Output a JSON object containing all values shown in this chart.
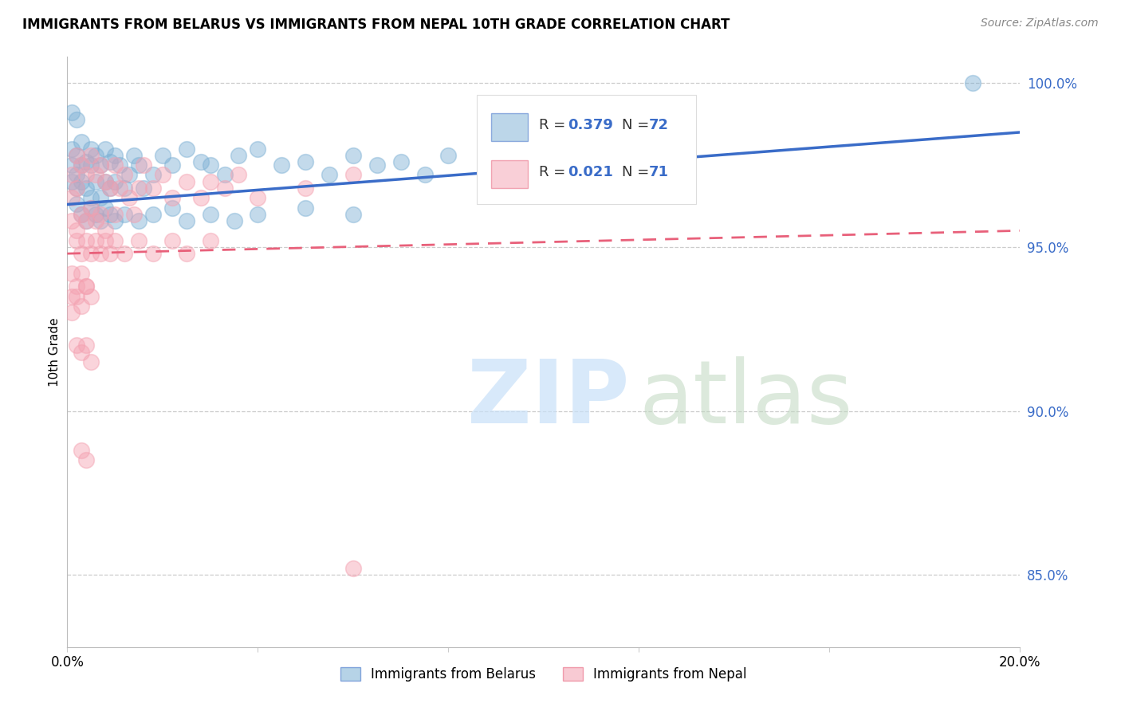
{
  "title": "IMMIGRANTS FROM BELARUS VS IMMIGRANTS FROM NEPAL 10TH GRADE CORRELATION CHART",
  "source": "Source: ZipAtlas.com",
  "ylabel": "10th Grade",
  "xlim": [
    0.0,
    0.2
  ],
  "ylim": [
    0.828,
    1.008
  ],
  "yticks": [
    0.85,
    0.9,
    0.95,
    1.0
  ],
  "ytick_labels": [
    "85.0%",
    "90.0%",
    "95.0%",
    "100.0%"
  ],
  "legend_label_belarus": "Immigrants from Belarus",
  "legend_label_nepal": "Immigrants from Nepal",
  "color_belarus": "#7BAFD4",
  "color_nepal": "#F4A0B0",
  "color_line_belarus": "#3A6CC8",
  "color_line_nepal": "#E8607A",
  "belarus_x": [
    0.001,
    0.001,
    0.001,
    0.002,
    0.002,
    0.002,
    0.003,
    0.003,
    0.003,
    0.004,
    0.004,
    0.005,
    0.005,
    0.005,
    0.006,
    0.006,
    0.007,
    0.007,
    0.008,
    0.008,
    0.009,
    0.009,
    0.01,
    0.01,
    0.011,
    0.012,
    0.013,
    0.014,
    0.015,
    0.016,
    0.018,
    0.02,
    0.022,
    0.025,
    0.028,
    0.03,
    0.033,
    0.036,
    0.04,
    0.045,
    0.05,
    0.055,
    0.06,
    0.065,
    0.07,
    0.075,
    0.08,
    0.09,
    0.1,
    0.11,
    0.002,
    0.003,
    0.004,
    0.005,
    0.006,
    0.007,
    0.008,
    0.009,
    0.01,
    0.012,
    0.015,
    0.018,
    0.022,
    0.025,
    0.03,
    0.035,
    0.04,
    0.05,
    0.06,
    0.19,
    0.001,
    0.002
  ],
  "belarus_y": [
    0.98,
    0.975,
    0.97,
    0.978,
    0.972,
    0.968,
    0.982,
    0.975,
    0.97,
    0.976,
    0.968,
    0.98,
    0.975,
    0.965,
    0.978,
    0.97,
    0.975,
    0.965,
    0.98,
    0.97,
    0.976,
    0.968,
    0.978,
    0.97,
    0.975,
    0.968,
    0.972,
    0.978,
    0.975,
    0.968,
    0.972,
    0.978,
    0.975,
    0.98,
    0.976,
    0.975,
    0.972,
    0.978,
    0.98,
    0.975,
    0.976,
    0.972,
    0.978,
    0.975,
    0.976,
    0.972,
    0.978,
    0.98,
    0.978,
    0.982,
    0.963,
    0.96,
    0.958,
    0.962,
    0.96,
    0.958,
    0.962,
    0.96,
    0.958,
    0.96,
    0.958,
    0.96,
    0.962,
    0.958,
    0.96,
    0.958,
    0.96,
    0.962,
    0.96,
    1.0,
    0.991,
    0.989
  ],
  "nepal_x": [
    0.001,
    0.001,
    0.001,
    0.002,
    0.002,
    0.002,
    0.003,
    0.003,
    0.004,
    0.004,
    0.005,
    0.005,
    0.006,
    0.006,
    0.007,
    0.007,
    0.008,
    0.008,
    0.009,
    0.01,
    0.01,
    0.011,
    0.012,
    0.013,
    0.014,
    0.015,
    0.016,
    0.018,
    0.02,
    0.022,
    0.025,
    0.028,
    0.03,
    0.033,
    0.036,
    0.04,
    0.05,
    0.06,
    0.002,
    0.003,
    0.004,
    0.005,
    0.006,
    0.007,
    0.008,
    0.009,
    0.01,
    0.012,
    0.015,
    0.018,
    0.022,
    0.025,
    0.03,
    0.001,
    0.002,
    0.003,
    0.004,
    0.001,
    0.001,
    0.002,
    0.003,
    0.004,
    0.005,
    0.002,
    0.003,
    0.004,
    0.005,
    0.003,
    0.004,
    0.06
  ],
  "nepal_y": [
    0.972,
    0.965,
    0.958,
    0.978,
    0.968,
    0.955,
    0.975,
    0.96,
    0.972,
    0.958,
    0.978,
    0.962,
    0.972,
    0.958,
    0.975,
    0.96,
    0.97,
    0.955,
    0.968,
    0.975,
    0.96,
    0.968,
    0.972,
    0.965,
    0.96,
    0.968,
    0.975,
    0.968,
    0.972,
    0.965,
    0.97,
    0.965,
    0.97,
    0.968,
    0.972,
    0.965,
    0.968,
    0.972,
    0.952,
    0.948,
    0.952,
    0.948,
    0.952,
    0.948,
    0.952,
    0.948,
    0.952,
    0.948,
    0.952,
    0.948,
    0.952,
    0.948,
    0.952,
    0.942,
    0.938,
    0.942,
    0.938,
    0.935,
    0.93,
    0.935,
    0.932,
    0.938,
    0.935,
    0.92,
    0.918,
    0.92,
    0.915,
    0.888,
    0.885,
    0.852
  ]
}
